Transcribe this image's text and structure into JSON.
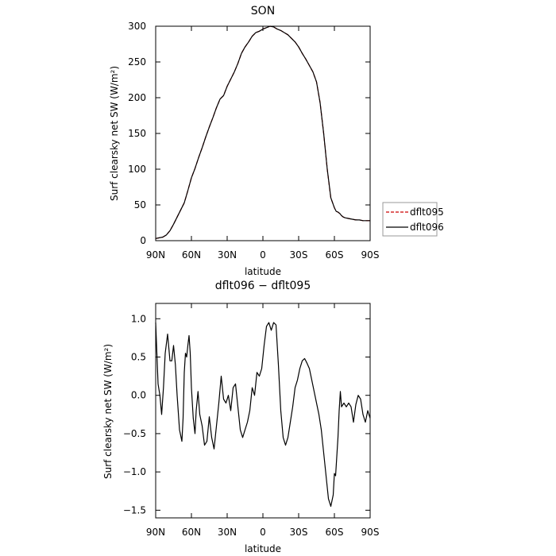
{
  "chart_data": [
    {
      "type": "line",
      "title": "SON",
      "xlabel": "latitude",
      "ylabel": "Surf clearsky net SW (W/m²)",
      "xlim": [
        90,
        -90
      ],
      "ylim": [
        0,
        300
      ],
      "xticks": [
        90,
        60,
        30,
        0,
        -30,
        -60,
        -90
      ],
      "xticklabels": [
        "90N",
        "60N",
        "30N",
        "0",
        "30S",
        "60S",
        "90S"
      ],
      "yticks": [
        0,
        50,
        100,
        150,
        200,
        250,
        300
      ],
      "yticklabels": [
        "0",
        "50",
        "100",
        "150",
        "200",
        "250",
        "300"
      ],
      "legend": {
        "placement": "right",
        "entries": [
          "dflt095",
          "dflt096"
        ]
      },
      "series": [
        {
          "name": "dflt095",
          "color": "#cc0000",
          "style": "dashed",
          "x": [
            90,
            87,
            84,
            81,
            78,
            75,
            72,
            69,
            66,
            63,
            60,
            57,
            54,
            51,
            48,
            45,
            42,
            39,
            36,
            33,
            30,
            27,
            24,
            21,
            18,
            15,
            12,
            9,
            6,
            3,
            0,
            -3,
            -6,
            -9,
            -12,
            -15,
            -18,
            -21,
            -24,
            -27,
            -30,
            -33,
            -36,
            -39,
            -42,
            -45,
            -48,
            -51,
            -54,
            -57,
            -60,
            -61.5,
            -63,
            -64.5,
            -66,
            -67.5,
            -69,
            -72,
            -75,
            -78,
            -81,
            -84,
            -87,
            -90
          ],
          "y": [
            3,
            4,
            5,
            8,
            14,
            23,
            33,
            43,
            53,
            70,
            88,
            101,
            116,
            130,
            145,
            159,
            172,
            186,
            198,
            203,
            216,
            226,
            236,
            248,
            262,
            271,
            278,
            286,
            291,
            293,
            296,
            298,
            300,
            299,
            296,
            294,
            291,
            288,
            283,
            278,
            271,
            262,
            254,
            245,
            236,
            222,
            193,
            150,
            100,
            60,
            46,
            41,
            40,
            38,
            35,
            33,
            32,
            31,
            30,
            29,
            29,
            28,
            28,
            28
          ]
        },
        {
          "name": "dflt096",
          "color": "#000000",
          "style": "solid",
          "x": [
            90,
            87,
            84,
            81,
            78,
            75,
            72,
            69,
            66,
            63,
            60,
            57,
            54,
            51,
            48,
            45,
            42,
            39,
            36,
            33,
            30,
            27,
            24,
            21,
            18,
            15,
            12,
            9,
            6,
            3,
            0,
            -3,
            -6,
            -9,
            -12,
            -15,
            -18,
            -21,
            -24,
            -27,
            -30,
            -33,
            -36,
            -39,
            -42,
            -45,
            -48,
            -51,
            -54,
            -57,
            -60,
            -61.5,
            -63,
            -64.5,
            -66,
            -67.5,
            -69,
            -72,
            -75,
            -78,
            -81,
            -84,
            -87,
            -90
          ],
          "y": [
            3,
            4,
            5,
            8,
            14,
            23,
            33,
            43,
            53,
            70,
            88,
            101,
            116,
            130,
            145,
            159,
            172,
            186,
            198,
            203,
            216,
            226,
            236,
            248,
            262,
            271,
            278,
            286,
            291,
            293,
            296,
            298,
            300,
            299,
            296,
            294,
            291,
            288,
            283,
            278,
            271,
            262,
            254,
            245,
            236,
            222,
            193,
            150,
            100,
            60,
            46,
            41,
            40,
            38,
            35,
            33,
            32,
            31,
            30,
            29,
            29,
            28,
            28,
            28
          ]
        }
      ]
    },
    {
      "type": "line",
      "title": "dflt096 − dflt095",
      "xlabel": "latitude",
      "ylabel": "Surf clearsky net SW (W/m²)",
      "xlim": [
        90,
        -90
      ],
      "ylim": [
        -1.6,
        1.2
      ],
      "xticks": [
        90,
        60,
        30,
        0,
        -30,
        -60,
        -90
      ],
      "xticklabels": [
        "90N",
        "60N",
        "30N",
        "0",
        "30S",
        "60S",
        "90S"
      ],
      "yticks": [
        1.0,
        0.5,
        0.0,
        -0.5,
        -1.0,
        -1.5
      ],
      "yticklabels": [
        "1.0",
        "0.5",
        "0.0",
        "−0.5",
        "−1.0",
        "−1.5"
      ],
      "series": [
        {
          "color": "#000000",
          "style": "solid",
          "x": [
            90,
            88,
            86.5,
            85,
            83.5,
            82,
            80,
            78,
            76.5,
            75,
            73.5,
            72,
            70,
            68,
            67,
            66,
            65,
            64,
            63,
            62,
            61,
            60,
            58.5,
            57,
            56,
            54.5,
            53,
            51,
            49,
            47,
            45,
            43,
            41,
            39,
            37,
            35,
            33,
            31,
            29,
            27,
            25,
            23,
            21,
            19,
            17,
            15,
            13,
            11,
            9,
            7,
            5,
            3,
            1,
            -1,
            -3,
            -5,
            -7,
            -9,
            -11,
            -13,
            -15,
            -17,
            -19,
            -21,
            -23,
            -25,
            -27,
            -29,
            -31,
            -33,
            -35,
            -37,
            -39,
            -41,
            -43,
            -45,
            -47,
            -49,
            -51,
            -53,
            -55,
            -57,
            -59,
            -60,
            -61,
            -62,
            -63,
            -64,
            -65,
            -66,
            -68,
            -70,
            -72,
            -74,
            -76,
            -78,
            -80,
            -82,
            -84,
            -86,
            -88,
            -90
          ],
          "y": [
            0.95,
            0.15,
            0.0,
            -0.25,
            0.1,
            0.55,
            0.8,
            0.45,
            0.45,
            0.65,
            0.4,
            0.0,
            -0.45,
            -0.6,
            -0.3,
            0.3,
            0.55,
            0.5,
            0.65,
            0.78,
            0.55,
            0.1,
            -0.3,
            -0.5,
            -0.2,
            0.05,
            -0.25,
            -0.4,
            -0.65,
            -0.6,
            -0.28,
            -0.55,
            -0.7,
            -0.4,
            -0.1,
            0.25,
            -0.05,
            -0.1,
            0.0,
            -0.2,
            0.1,
            0.15,
            -0.15,
            -0.45,
            -0.55,
            -0.45,
            -0.35,
            -0.2,
            0.1,
            0.0,
            0.3,
            0.25,
            0.35,
            0.65,
            0.9,
            0.95,
            0.85,
            0.95,
            0.92,
            0.4,
            -0.2,
            -0.55,
            -0.65,
            -0.55,
            -0.35,
            -0.15,
            0.1,
            0.2,
            0.35,
            0.45,
            0.48,
            0.42,
            0.35,
            0.2,
            0.05,
            -0.1,
            -0.25,
            -0.45,
            -0.75,
            -1.05,
            -1.35,
            -1.45,
            -1.3,
            -1.02,
            -1.05,
            -0.8,
            -0.55,
            -0.2,
            0.05,
            -0.15,
            -0.1,
            -0.15,
            -0.1,
            -0.15,
            -0.35,
            -0.12,
            0.0,
            -0.05,
            -0.25,
            -0.35,
            -0.2,
            -0.3
          ]
        }
      ]
    }
  ]
}
